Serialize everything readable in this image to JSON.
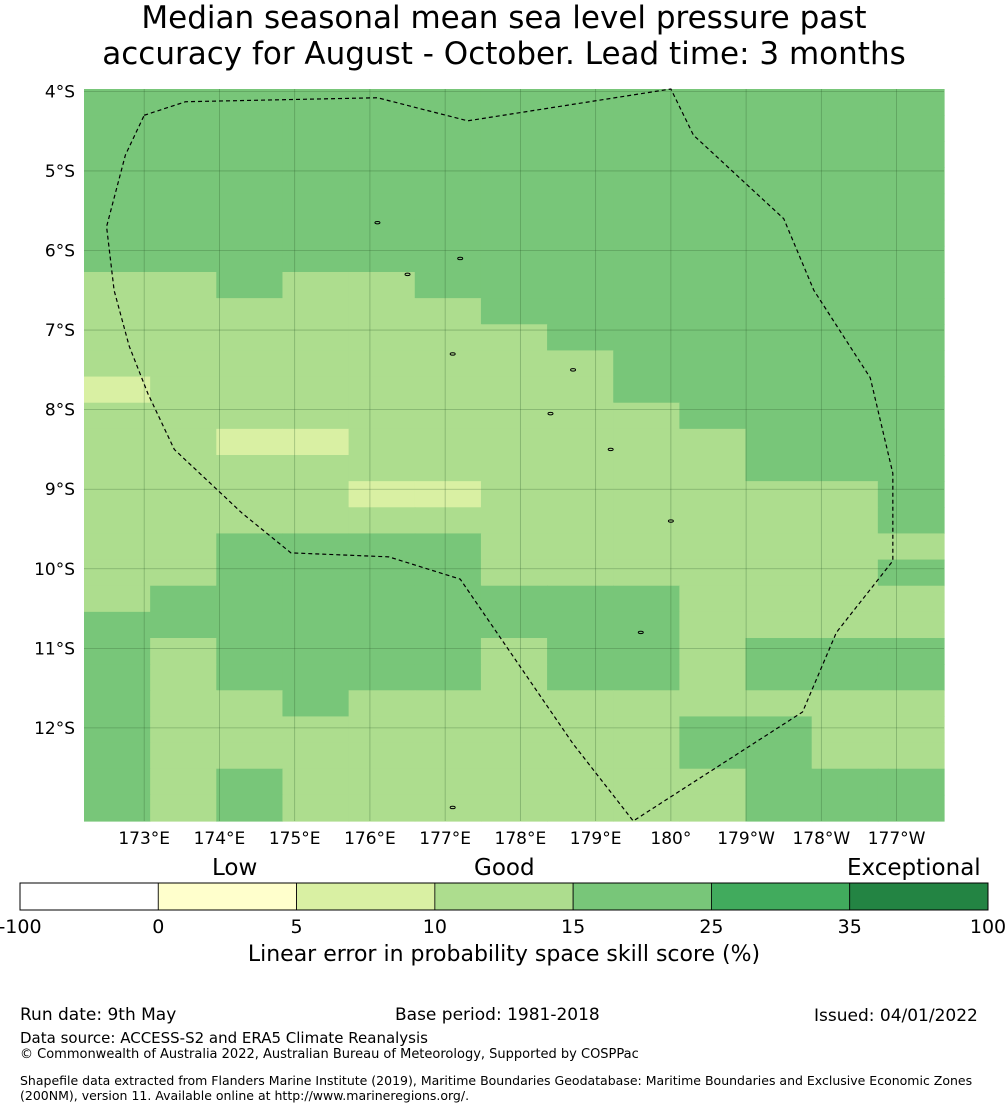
{
  "title": {
    "line1": "Median seasonal mean sea level pressure past",
    "line2": "accuracy for August - October. Lead time: 3 months"
  },
  "map": {
    "lat_labels": [
      "4°S",
      "5°S",
      "6°S",
      "7°S",
      "8°S",
      "9°S",
      "10°S",
      "11°S",
      "12°S"
    ],
    "lon_labels": [
      "173°E",
      "174°E",
      "175°E",
      "176°E",
      "177°E",
      "178°E",
      "179°E",
      "180°",
      "179°W",
      "178°W",
      "177°W"
    ],
    "level_colors": [
      "#ffffff",
      "#ffffcc",
      "#d9f0a3",
      "#addd8e",
      "#78c679",
      "#41ab5d",
      "#238443"
    ],
    "grid": [
      "4444444444444",
      "4444444444444",
      "4444444444444",
      "4444444444444",
      "4444444444444",
      "4444444444444",
      "4444444444444",
      "3343344444444",
      "3333334444444",
      "3333333444444",
      "3333333344444",
      "2333333344444",
      "3333333334444",
      "3322333333444",
      "3333333333444",
      "3333223333334",
      "3333333333334",
      "3344443333333",
      "3344443333334",
      "3444444443333",
      "4444444443333",
      "4344443443444",
      "4344443443444",
      "4334333333333",
      "4333333334433",
      "4333333334433",
      "4343333333444",
      "4343333333444"
    ],
    "grid_lat_top": 3.97,
    "grid_lat_bottom": 13.17,
    "grid_lon_left": 172.2,
    "grid_lon_right": 183.63,
    "note": ""
  },
  "legend": {
    "categories": {
      "low": "Low",
      "good": "Good",
      "exceptional": "Exceptional"
    },
    "ticks": [
      "-100",
      "0",
      "5",
      "10",
      "15",
      "25",
      "35",
      "100"
    ],
    "label": "Linear error in probability space skill score (%)"
  },
  "footer": {
    "run_date": "Run date: 9th May",
    "base_period": "Base period: 1981-2018",
    "issued": "Issued: 04/01/2022",
    "data_source": "Data source: ACCESS-S2 and ERA5 Climate Reanalysis",
    "copyright": "© Commonwealth of Australia 2022, Australian Bureau of Meteorology, Supported by COSPPac",
    "shapefile": "Shapefile data extracted from Flanders Marine Institute (2019), Maritime Boundaries Geodatabase: Maritime Boundaries and Exclusive Economic Zones (200NM), version 11. Available online at http://www.marineregions.org/."
  },
  "eez_boundary_lonlat": [
    [
      173.0,
      -4.3
    ],
    [
      173.55,
      -4.13
    ],
    [
      176.1,
      -4.08
    ],
    [
      177.3,
      -4.37
    ],
    [
      180.0,
      -3.97
    ],
    [
      180.3,
      -4.55
    ],
    [
      181.5,
      -5.6
    ],
    [
      181.9,
      -6.5
    ],
    [
      182.65,
      -7.6
    ],
    [
      182.95,
      -8.8
    ],
    [
      182.95,
      -9.9
    ],
    [
      182.2,
      -10.8
    ],
    [
      181.75,
      -11.8
    ],
    [
      179.5,
      -13.17
    ],
    [
      178.7,
      -12.2
    ],
    [
      177.2,
      -10.13
    ],
    [
      176.25,
      -9.85
    ],
    [
      174.95,
      -9.8
    ],
    [
      174.3,
      -9.3
    ],
    [
      173.85,
      -8.9
    ],
    [
      173.4,
      -8.5
    ],
    [
      173.05,
      -7.8
    ],
    [
      172.8,
      -7.2
    ],
    [
      172.6,
      -6.5
    ],
    [
      172.5,
      -5.7
    ],
    [
      172.75,
      -4.8
    ]
  ],
  "islands_lonlat": [
    [
      176.1,
      -5.65
    ],
    [
      177.2,
      -6.1
    ],
    [
      176.5,
      -6.3
    ],
    [
      177.1,
      -7.3
    ],
    [
      178.7,
      -7.5
    ],
    [
      178.4,
      -8.05
    ],
    [
      179.2,
      -8.5
    ],
    [
      180.0,
      -9.4
    ],
    [
      179.6,
      -10.8
    ],
    [
      177.1,
      -13.0
    ]
  ]
}
